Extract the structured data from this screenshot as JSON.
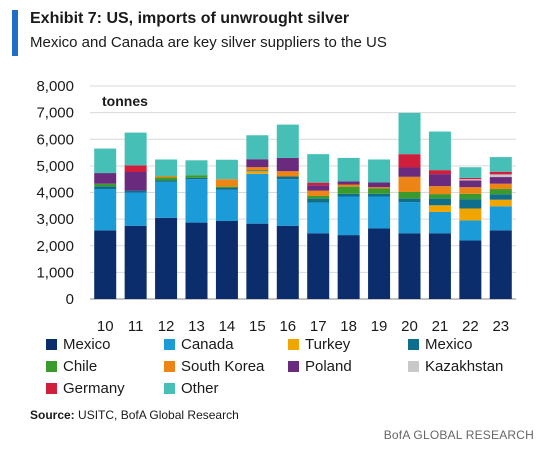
{
  "header": {
    "title": "Exhibit 7: US, imports of unwrought silver",
    "subtitle": "Mexico and Canada are key silver suppliers to the US"
  },
  "source": {
    "label": "Source:",
    "text": " USITC, BofA Global Research"
  },
  "footer": {
    "brand": "BofA GLOBAL RESEARCH"
  },
  "chart_data": {
    "type": "bar",
    "stacked": true,
    "unit_label": "tonnes",
    "ylim": [
      0,
      8000
    ],
    "yticks": [
      "0",
      "1,000",
      "2,000",
      "3,000",
      "4,000",
      "5,000",
      "6,000",
      "7,000",
      "8,000"
    ],
    "categories": [
      "10",
      "11",
      "12",
      "13",
      "14",
      "15",
      "16",
      "17",
      "18",
      "19",
      "20",
      "21",
      "22",
      "23"
    ],
    "legend_columns": 4,
    "series": [
      {
        "name": "Mexico",
        "color": "#0b2d6b",
        "values": [
          2580,
          2750,
          3050,
          2870,
          2930,
          2830,
          2750,
          2470,
          2400,
          2650,
          2470,
          2470,
          2200,
          2580
        ]
      },
      {
        "name": "Canada",
        "color": "#1b9bd8",
        "values": [
          1550,
          1250,
          1350,
          1630,
          1170,
          1870,
          1750,
          1150,
          1450,
          1200,
          1170,
          800,
          750,
          900
        ]
      },
      {
        "name": "Turkey",
        "color": "#f0a500",
        "values": [
          0,
          0,
          0,
          0,
          0,
          100,
          0,
          0,
          0,
          0,
          0,
          250,
          450,
          250
        ]
      },
      {
        "name": "Mexico",
        "color": "#0f6e8c",
        "values": [
          100,
          70,
          50,
          50,
          70,
          30,
          100,
          150,
          100,
          100,
          130,
          250,
          350,
          200
        ]
      },
      {
        "name": "Chile",
        "color": "#3a9a2d",
        "values": [
          100,
          0,
          120,
          100,
          50,
          0,
          0,
          100,
          270,
          200,
          250,
          170,
          200,
          200
        ]
      },
      {
        "name": "South Korea",
        "color": "#ed8416",
        "values": [
          0,
          0,
          50,
          0,
          280,
          120,
          200,
          200,
          80,
          50,
          570,
          300,
          250,
          200
        ]
      },
      {
        "name": "Poland",
        "color": "#6a2a7e",
        "values": [
          400,
          700,
          0,
          0,
          0,
          300,
          500,
          200,
          120,
          180,
          350,
          450,
          250,
          250
        ]
      },
      {
        "name": "Kazakhstan",
        "color": "#c8c8c8",
        "values": [
          0,
          0,
          0,
          0,
          0,
          0,
          0,
          0,
          0,
          0,
          0,
          0,
          50,
          100
        ]
      },
      {
        "name": "Germany",
        "color": "#d01f3c",
        "values": [
          0,
          250,
          0,
          0,
          0,
          0,
          0,
          100,
          0,
          0,
          500,
          150,
          50,
          100
        ]
      },
      {
        "name": "Other",
        "color": "#46c0b6",
        "values": [
          920,
          1230,
          620,
          560,
          730,
          900,
          1250,
          1070,
          880,
          860,
          1550,
          1450,
          400,
          550
        ]
      }
    ]
  }
}
